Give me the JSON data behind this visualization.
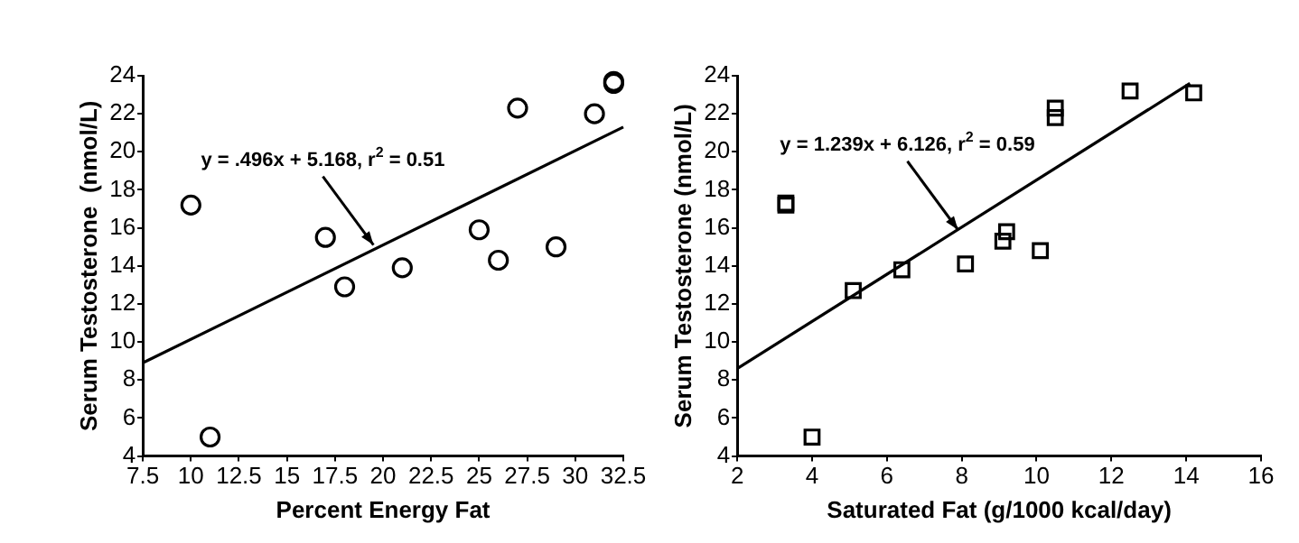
{
  "chart_data": [
    {
      "type": "scatter",
      "xlabel": "Percent Energy Fat",
      "ylabel": "Serum Testosterone  (nmol/L)",
      "xlim": [
        7.5,
        32.5
      ],
      "xticks": [
        7.5,
        10,
        12.5,
        15,
        17.5,
        20,
        22.5,
        25,
        27.5,
        30,
        32.5
      ],
      "ylim": [
        4,
        24
      ],
      "yticks": [
        4,
        6,
        8,
        10,
        12,
        14,
        16,
        18,
        20,
        22,
        24
      ],
      "grid": false,
      "legend": false,
      "annotations": [
        {
          "text": "y = .496x + 5.168, r$^{2}$ = 0.51",
          "x": 19.5,
          "y": 15.1
        }
      ],
      "series": [
        {
          "type": "scatter",
          "marker": "circle",
          "color": "#000000",
          "x": [
            10,
            11,
            17,
            18,
            21,
            25,
            26,
            27,
            29,
            31,
            32,
            32
          ],
          "values": [
            17.2,
            5,
            15.5,
            12.9,
            13.9,
            15.9,
            14.3,
            22.3,
            15,
            22,
            23.6,
            23.7
          ]
        },
        {
          "type": "line",
          "marker": "none",
          "color": "#000000",
          "x": [
            7.5,
            32.5
          ],
          "values": [
            8.9,
            21.3
          ]
        }
      ]
    },
    {
      "type": "scatter",
      "xlabel": "Saturated Fat (g/1000 kcal/day)",
      "ylabel": "Serum Testosterone (nmol/L)",
      "xlim": [
        2,
        16
      ],
      "xticks": [
        2,
        4,
        6,
        8,
        10,
        12,
        14,
        16
      ],
      "ylim": [
        4,
        24
      ],
      "yticks": [
        4,
        6,
        8,
        10,
        12,
        14,
        16,
        18,
        20,
        22,
        24
      ],
      "grid": false,
      "legend": false,
      "annotations": [
        {
          "text": "y = 1.239x + 6.126, r$^{2}$ = 0.59",
          "x": 7.9,
          "y": 15.9
        }
      ],
      "series": [
        {
          "type": "scatter",
          "marker": "square",
          "color": "#000000",
          "x": [
            3.3,
            3.3,
            4,
            5.1,
            6.4,
            8.1,
            9.1,
            9.2,
            10.1,
            10.5,
            10.5,
            12.5,
            14.2
          ],
          "values": [
            17.2,
            17.3,
            5,
            12.7,
            13.8,
            14.1,
            15.3,
            15.8,
            14.8,
            21.8,
            22.3,
            23.2,
            23.1
          ]
        },
        {
          "type": "line",
          "marker": "none",
          "color": "#000000",
          "x": [
            2,
            14.1
          ],
          "values": [
            8.6,
            23.6
          ]
        }
      ]
    }
  ]
}
